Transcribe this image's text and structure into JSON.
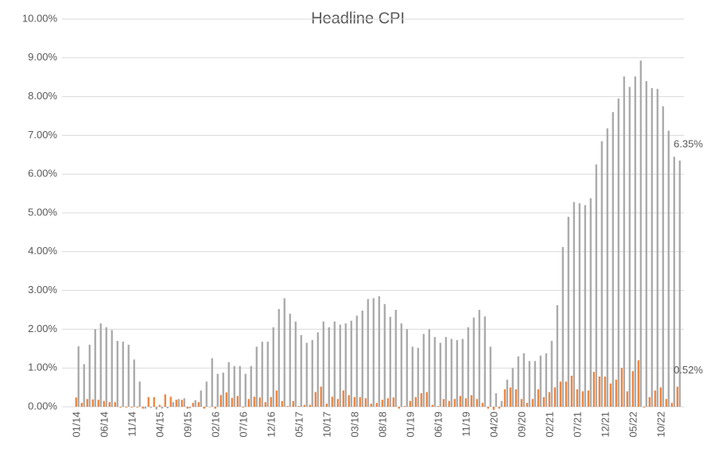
{
  "chart_data": {
    "type": "bar",
    "title": "Headline CPI",
    "categories": [
      "01/14",
      null,
      null,
      null,
      null,
      "06/14",
      null,
      null,
      null,
      null,
      "11/14",
      null,
      null,
      null,
      null,
      "04/15",
      null,
      null,
      null,
      null,
      "09/15",
      null,
      null,
      null,
      null,
      "02/16",
      null,
      null,
      null,
      null,
      "07/16",
      null,
      null,
      null,
      null,
      "12/16",
      null,
      null,
      null,
      null,
      "05/17",
      null,
      null,
      null,
      null,
      "10/17",
      null,
      null,
      null,
      null,
      "03/18",
      null,
      null,
      null,
      null,
      "08/18",
      null,
      null,
      null,
      null,
      "01/19",
      null,
      null,
      null,
      null,
      "06/19",
      null,
      null,
      null,
      null,
      "11/19",
      null,
      null,
      null,
      null,
      "04/20",
      null,
      null,
      null,
      null,
      "09/20",
      null,
      null,
      null,
      null,
      "02/21",
      null,
      null,
      null,
      null,
      "07/21",
      null,
      null,
      null,
      null,
      "12/21",
      null,
      null,
      null,
      null,
      "05/22",
      null,
      null,
      null,
      null,
      "10/22",
      null,
      null,
      null
    ],
    "series": [
      {
        "color": "#a5a5a5",
        "values": [
          1.56,
          1.1,
          1.6,
          2.0,
          2.15,
          2.05,
          1.98,
          1.7,
          1.68,
          1.6,
          1.22,
          0.65,
          -0.05,
          -0.03,
          -0.07,
          -0.05,
          -0.04,
          0.12,
          0.2,
          0.22,
          -0.04,
          0.17,
          0.42,
          0.65,
          1.25,
          0.85,
          0.88,
          1.15,
          1.05,
          1.05,
          0.85,
          1.05,
          1.55,
          1.68,
          1.68,
          2.05,
          2.52,
          2.8,
          2.4,
          2.2,
          1.85,
          1.65,
          1.72,
          1.92,
          2.2,
          2.05,
          2.2,
          2.12,
          2.15,
          2.22,
          2.35,
          2.48,
          2.78,
          2.8,
          2.85,
          2.65,
          2.32,
          2.5,
          2.15,
          2.0,
          1.55,
          1.52,
          1.88,
          2.0,
          1.8,
          1.65,
          1.8,
          1.75,
          1.72,
          1.75,
          2.05,
          2.3,
          2.5,
          2.33,
          1.55,
          0.35,
          0.15,
          0.7,
          1.0,
          1.3,
          1.38,
          1.18,
          1.18,
          1.32,
          1.38,
          1.7,
          2.62,
          4.12,
          4.9,
          5.28,
          5.25,
          5.2,
          5.38,
          6.25,
          6.85,
          7.18,
          7.6,
          7.95,
          8.52,
          8.25,
          8.52,
          8.93,
          8.4,
          8.22,
          8.2,
          7.75,
          7.12,
          6.45,
          6.35
        ],
        "value_labels": [
          null,
          null,
          null,
          null,
          null,
          null,
          null,
          null,
          null,
          null,
          null,
          null,
          null,
          null,
          null,
          null,
          null,
          null,
          null,
          null,
          null,
          null,
          null,
          null,
          null,
          null,
          null,
          null,
          null,
          null,
          null,
          null,
          null,
          null,
          null,
          null,
          null,
          null,
          null,
          null,
          null,
          null,
          null,
          null,
          null,
          null,
          null,
          null,
          null,
          null,
          null,
          null,
          null,
          null,
          null,
          null,
          null,
          null,
          null,
          null,
          null,
          null,
          null,
          null,
          null,
          null,
          null,
          null,
          null,
          null,
          null,
          null,
          null,
          null,
          null,
          null,
          null,
          null,
          null,
          null,
          null,
          null,
          null,
          null,
          null,
          null,
          null,
          null,
          null,
          null,
          null,
          null,
          null,
          null,
          null,
          null,
          null,
          null,
          null,
          null,
          null,
          null,
          null,
          null,
          null,
          null,
          null,
          null,
          "6.35%"
        ]
      },
      {
        "color": "#ed7d31",
        "values": [
          0.24,
          0.1,
          0.2,
          0.19,
          0.18,
          0.15,
          0.12,
          0.12,
          -0.02,
          -0.02,
          -0.02,
          -0.02,
          -0.05,
          0.25,
          0.25,
          0.05,
          0.32,
          0.26,
          0.18,
          0.18,
          -0.05,
          0.1,
          0.12,
          -0.05,
          0.0,
          -0.05,
          0.3,
          0.37,
          0.23,
          0.28,
          -0.02,
          0.2,
          0.26,
          0.24,
          0.12,
          0.25,
          0.42,
          0.15,
          0.02,
          0.15,
          0.02,
          0.05,
          0.05,
          0.38,
          0.52,
          0.08,
          0.26,
          0.2,
          0.42,
          0.3,
          0.25,
          0.25,
          0.22,
          0.08,
          0.1,
          0.18,
          0.22,
          0.24,
          -0.05,
          0.02,
          0.15,
          0.25,
          0.35,
          0.38,
          0.05,
          0.02,
          0.2,
          0.15,
          0.2,
          0.28,
          0.22,
          0.3,
          0.2,
          0.1,
          -0.05,
          -0.08,
          -0.05,
          0.45,
          0.5,
          0.45,
          0.2,
          0.1,
          0.2,
          0.45,
          0.25,
          0.38,
          0.5,
          0.65,
          0.65,
          0.8,
          0.45,
          0.4,
          0.42,
          0.9,
          0.78,
          0.78,
          0.6,
          0.7,
          1.0,
          0.4,
          0.92,
          1.2,
          -0.02,
          0.25,
          0.42,
          0.5,
          0.2,
          0.1,
          0.52
        ],
        "value_labels": [
          null,
          null,
          null,
          null,
          null,
          null,
          null,
          null,
          null,
          null,
          null,
          null,
          null,
          null,
          null,
          null,
          null,
          null,
          null,
          null,
          null,
          null,
          null,
          null,
          null,
          null,
          null,
          null,
          null,
          null,
          null,
          null,
          null,
          null,
          null,
          null,
          null,
          null,
          null,
          null,
          null,
          null,
          null,
          null,
          null,
          null,
          null,
          null,
          null,
          null,
          null,
          null,
          null,
          null,
          null,
          null,
          null,
          null,
          null,
          null,
          null,
          null,
          null,
          null,
          null,
          null,
          null,
          null,
          null,
          null,
          null,
          null,
          null,
          null,
          null,
          null,
          null,
          null,
          null,
          null,
          null,
          null,
          null,
          null,
          null,
          null,
          null,
          null,
          null,
          null,
          null,
          null,
          null,
          null,
          null,
          null,
          null,
          null,
          null,
          null,
          null,
          null,
          null,
          null,
          null,
          null,
          null,
          null,
          "0.52%"
        ]
      }
    ],
    "ylim": [
      0,
      10
    ],
    "yticks": [
      {
        "value": 0,
        "label": "0.00%"
      },
      {
        "value": 1,
        "label": "1.00%"
      },
      {
        "value": 2,
        "label": "2.00%"
      },
      {
        "value": 3,
        "label": "3.00%"
      },
      {
        "value": 4,
        "label": "4.00%"
      },
      {
        "value": 5,
        "label": "5.00%"
      },
      {
        "value": 6,
        "label": "6.00%"
      },
      {
        "value": 7,
        "label": "7.00%"
      },
      {
        "value": 8,
        "label": "8.00%"
      },
      {
        "value": 9,
        "label": "9.00%"
      },
      {
        "value": 10,
        "label": "10.00%"
      }
    ],
    "grid": true
  }
}
